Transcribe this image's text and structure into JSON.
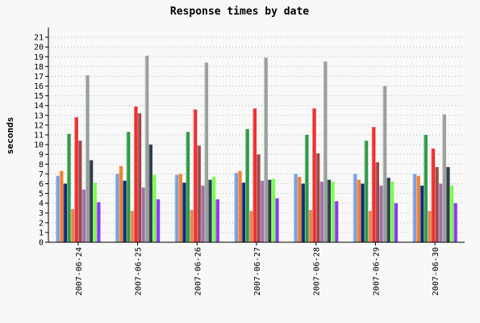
{
  "chart_data": {
    "type": "bar",
    "title": "Response times by date",
    "xlabel": "",
    "ylabel": "seconds",
    "ylim": [
      0,
      22
    ],
    "yticks": [
      0,
      1,
      2,
      3,
      4,
      5,
      6,
      7,
      8,
      9,
      10,
      11,
      12,
      13,
      14,
      15,
      16,
      17,
      18,
      19,
      20,
      21
    ],
    "grid": true,
    "legend": "none",
    "categories": [
      "2007-06-24",
      "2007-06-25",
      "2007-06-26",
      "2007-06-27",
      "2007-06-28",
      "2007-06-29",
      "2007-06-30"
    ],
    "series": [
      {
        "color": "#7b9fe0",
        "values": [
          6.8,
          7.0,
          6.9,
          7.1,
          7.0,
          7.0,
          7.0
        ]
      },
      {
        "color": "#f08030",
        "values": [
          7.3,
          7.8,
          7.0,
          7.3,
          6.7,
          6.4,
          6.8
        ]
      },
      {
        "color": "#102a78",
        "values": [
          6.0,
          6.3,
          6.1,
          6.1,
          6.0,
          6.0,
          5.8
        ]
      },
      {
        "color": "#2e9a48",
        "values": [
          11.1,
          11.3,
          11.3,
          11.6,
          11.0,
          10.4,
          11.0
        ]
      },
      {
        "color": "#e08858",
        "values": [
          3.4,
          3.2,
          3.3,
          3.2,
          3.3,
          3.2,
          3.2
        ]
      },
      {
        "color": "#ee2e2e",
        "values": [
          12.8,
          13.9,
          13.6,
          13.7,
          13.7,
          11.8,
          9.6
        ]
      },
      {
        "color": "#a04848",
        "values": [
          10.4,
          13.2,
          9.9,
          9.0,
          9.1,
          8.2,
          7.7
        ]
      },
      {
        "color": "#a070a8",
        "values": [
          5.4,
          5.6,
          5.8,
          6.3,
          6.2,
          5.8,
          6.0
        ]
      },
      {
        "color": "#98a09c",
        "values": [
          17.1,
          19.1,
          18.4,
          18.9,
          18.5,
          16.0,
          13.1
        ]
      },
      {
        "color": "#2e3c4a",
        "values": [
          8.4,
          10.0,
          6.4,
          6.4,
          6.4,
          6.6,
          7.7
        ]
      },
      {
        "color": "#78ff50",
        "values": [
          6.1,
          6.9,
          6.7,
          6.5,
          6.2,
          6.2,
          5.8
        ]
      },
      {
        "color": "#8c38f0",
        "values": [
          4.1,
          4.4,
          4.4,
          4.5,
          4.2,
          4.0,
          4.0
        ]
      }
    ]
  }
}
